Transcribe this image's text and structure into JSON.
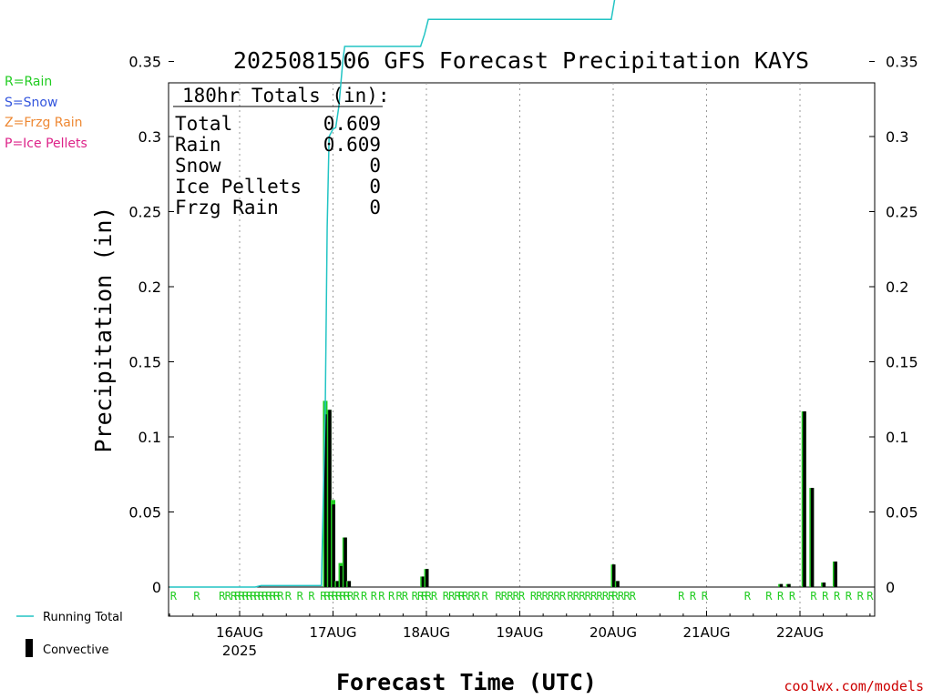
{
  "chart_data": {
    "type": "bar+line",
    "title": "2025081506 GFS Forecast Precipitation KAYS",
    "xlabel": "Forecast Time (UTC)",
    "ylabel": "Precipitation (in)",
    "ylim": [
      0,
      0.67
    ],
    "xlim_hours": [
      -18,
      162
    ],
    "yticks": [
      "0",
      "0.05",
      "0.1",
      "0.15",
      "0.2",
      "0.25",
      "0.3",
      "0.35",
      "0.4",
      "0.45",
      "0.5",
      "0.55",
      "0.6",
      "0.65"
    ],
    "xticks": [
      {
        "label": "16AUG",
        "sublabel": "2025",
        "hour": 0
      },
      {
        "label": "17AUG",
        "hour": 24
      },
      {
        "label": "18AUG",
        "hour": 48
      },
      {
        "label": "19AUG",
        "hour": 72
      },
      {
        "label": "20AUG",
        "hour": 96
      },
      {
        "label": "21AUG",
        "hour": 120
      },
      {
        "label": "22AUG",
        "hour": 144
      }
    ],
    "grid": "dotted-vertical",
    "totals": {
      "header": "180hr Totals (in):",
      "rows": [
        {
          "label": "Total",
          "value": "0.609"
        },
        {
          "label": "Rain",
          "value": "0.609"
        },
        {
          "label": "Snow",
          "value": "0"
        },
        {
          "label": "Ice Pellets",
          "value": "0"
        },
        {
          "label": "Frzg Rain",
          "value": "0"
        }
      ]
    },
    "precip_type_legend": [
      {
        "text": "R=Rain",
        "color": "#22cc22"
      },
      {
        "text": "S=Snow",
        "color": "#3355dd"
      },
      {
        "text": "Z=Frzg Rain",
        "color": "#ee8833"
      },
      {
        "text": "P=Ice Pellets",
        "color": "#dd2288"
      }
    ],
    "series_legend": [
      {
        "text": "Running Total",
        "color": "#22c4c4"
      },
      {
        "text": "Convective",
        "color": "#000000"
      }
    ],
    "running_total": [
      [
        -18,
        0
      ],
      [
        4,
        0
      ],
      [
        5.5,
        0.001
      ],
      [
        21,
        0.001
      ],
      [
        22,
        0.12
      ],
      [
        22.5,
        0.24
      ],
      [
        23,
        0.3
      ],
      [
        24,
        0.305
      ],
      [
        24.7,
        0.306
      ],
      [
        25.5,
        0.32
      ],
      [
        26.5,
        0.35
      ],
      [
        27,
        0.36
      ],
      [
        46.5,
        0.36
      ],
      [
        47.5,
        0.368
      ],
      [
        48.5,
        0.378
      ],
      [
        95.5,
        0.378
      ],
      [
        96.5,
        0.393
      ],
      [
        97.5,
        0.394
      ],
      [
        98.5,
        0.398
      ],
      [
        117.5,
        0.398
      ],
      [
        118,
        0.4
      ],
      [
        137.5,
        0.4
      ],
      [
        138,
        0.402
      ],
      [
        139.5,
        0.403
      ],
      [
        140,
        0.405
      ],
      [
        141.5,
        0.406
      ],
      [
        143,
        0.406
      ],
      [
        145,
        0.406
      ],
      [
        145.5,
        0.52
      ],
      [
        147,
        0.52
      ],
      [
        147.5,
        0.587
      ],
      [
        149,
        0.588
      ],
      [
        150.5,
        0.59
      ],
      [
        152,
        0.59
      ],
      [
        153,
        0.608
      ],
      [
        162,
        0.608
      ]
    ],
    "precip_bars": [
      {
        "hour": 22.0,
        "total": 0.124,
        "conv": 0.115
      },
      {
        "hour": 23.0,
        "total": 0.118,
        "conv": 0.118
      },
      {
        "hour": 24.0,
        "total": 0.058,
        "conv": 0.055
      },
      {
        "hour": 25.0,
        "total": 0.004,
        "conv": 0.004
      },
      {
        "hour": 26.0,
        "total": 0.016,
        "conv": 0.014
      },
      {
        "hour": 27.0,
        "total": 0.033,
        "conv": 0.033
      },
      {
        "hour": 28.0,
        "total": 0.004,
        "conv": 0.004
      },
      {
        "hour": 47.0,
        "total": 0.007,
        "conv": 0.007
      },
      {
        "hour": 48.0,
        "total": 0.012,
        "conv": 0.012
      },
      {
        "hour": 96.0,
        "total": 0.015,
        "conv": 0.015
      },
      {
        "hour": 97.0,
        "total": 0.004,
        "conv": 0.004
      },
      {
        "hour": 139.0,
        "total": 0.002,
        "conv": 0.002
      },
      {
        "hour": 141.0,
        "total": 0.002,
        "conv": 0.002
      },
      {
        "hour": 145.0,
        "total": 0.117,
        "conv": 0.117
      },
      {
        "hour": 147.0,
        "total": 0.066,
        "conv": 0.066
      },
      {
        "hour": 150.0,
        "total": 0.003,
        "conv": 0.003
      },
      {
        "hour": 153.0,
        "total": 0.017,
        "conv": 0.017
      }
    ],
    "precip_type_markers": [
      -17,
      -11,
      -4.5,
      -3,
      -1.5,
      -0.5,
      0.5,
      1.5,
      2.5,
      3.5,
      4.5,
      5.5,
      6.5,
      7.5,
      8.5,
      9.5,
      10.5,
      12.5,
      15.5,
      18.5,
      21.5,
      22.5,
      23.5,
      24.5,
      25.5,
      26.5,
      27.5,
      28.5,
      30,
      32,
      34.5,
      36.5,
      39,
      41,
      42.5,
      45,
      46.5,
      47.5,
      48.5,
      50,
      53,
      54.5,
      56,
      57,
      58,
      59.5,
      61,
      63,
      66.5,
      68,
      69.5,
      71,
      72.5,
      75.5,
      77,
      78.5,
      80,
      81.5,
      83,
      85,
      86.5,
      88,
      89.5,
      91,
      92.5,
      94,
      95.5,
      96.5,
      98,
      99.5,
      101,
      113.5,
      116.5,
      119.5,
      130.5,
      136,
      139,
      142,
      147.5,
      150.5,
      153.5,
      156.5,
      159.5,
      162
    ],
    "precip_type_letter": "R"
  },
  "credit": "coolwx.com/models"
}
